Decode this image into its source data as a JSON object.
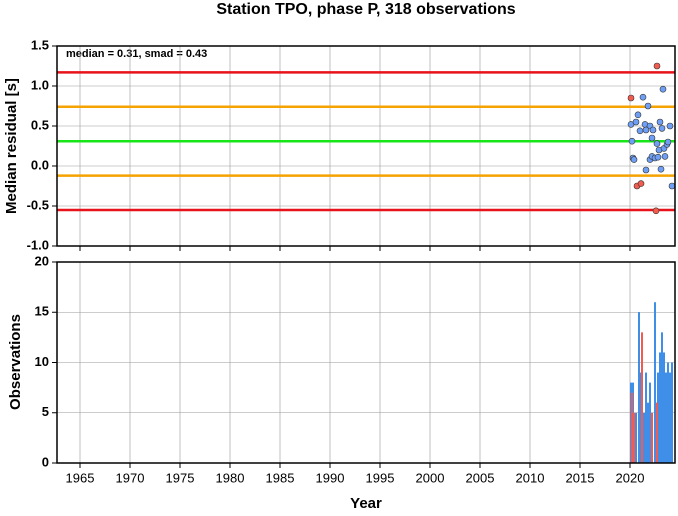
{
  "chart_data": [
    {
      "type": "scatter",
      "title": "Station TPO, phase P, 318 observations",
      "annotation": "median = 0.31, smad = 0.43",
      "ylabel": "Median residual [s]",
      "xlim": [
        1962.7,
        2024.5
      ],
      "xticks": [
        1965,
        1970,
        1975,
        1980,
        1985,
        1990,
        1995,
        2000,
        2005,
        2010,
        2015,
        2020
      ],
      "ylim": [
        -1.0,
        1.5
      ],
      "yticks": [
        {
          "value": -1.0,
          "label": "-1.0"
        },
        -0.5,
        {
          "value": 0.0,
          "label": "0.0"
        },
        0.5,
        {
          "value": 1.0,
          "label": "1.0"
        },
        1.5
      ],
      "grid": true,
      "hlines": [
        {
          "value": 1.17,
          "color": "#e8131a"
        },
        {
          "value": 0.74,
          "color": "#f5a300"
        },
        {
          "value": 0.31,
          "color": "#19e619"
        },
        {
          "value": -0.12,
          "color": "#f5a300"
        },
        {
          "value": -0.55,
          "color": "#e8131a"
        }
      ],
      "series": [
        {
          "color": "#6f9ff5",
          "x": [
            2020.1,
            2020.2,
            2020.3,
            2020.4,
            2020.6,
            2020.8,
            2021.0,
            2021.3,
            2021.5,
            2021.6,
            2021.8,
            2022.0,
            2022.0,
            2022.2,
            2022.3,
            2022.2,
            2022.5,
            2022.7,
            2022.8,
            2022.9,
            2023.0,
            2023.1,
            2023.2,
            2023.3,
            2023.4,
            2023.5,
            2023.7,
            2023.8,
            2024.0,
            2024.2,
            2021.6
          ],
          "values": [
            0.52,
            0.31,
            0.1,
            0.08,
            0.55,
            0.64,
            0.44,
            0.86,
            0.52,
            -0.05,
            0.75,
            0.5,
            0.08,
            0.35,
            0.45,
            0.12,
            0.1,
            0.28,
            0.11,
            0.2,
            0.55,
            -0.04,
            0.47,
            0.96,
            0.22,
            0.12,
            0.27,
            0.3,
            0.5,
            -0.25,
            0.45
          ]
        },
        {
          "color": "#f25c4f",
          "x": [
            2020.1,
            2022.7,
            2020.7,
            2021.1,
            2022.6
          ],
          "values": [
            0.85,
            1.25,
            -0.25,
            -0.22,
            -0.56
          ]
        }
      ]
    },
    {
      "type": "bar",
      "xlabel": "Year",
      "ylabel": "Observations",
      "xlim": [
        1962.7,
        2024.5
      ],
      "xticks": [
        1965,
        1970,
        1975,
        1980,
        1985,
        1990,
        1995,
        2000,
        2005,
        2010,
        2015,
        2020
      ],
      "ylim": [
        0,
        20
      ],
      "yticks": [
        0,
        5,
        10,
        15,
        20
      ],
      "grid": true,
      "series": [
        {
          "color": "#3f8fe8",
          "x": [
            2020.1,
            2020.3,
            2020.6,
            2020.9,
            2021.1,
            2021.4,
            2021.6,
            2021.8,
            2022.0,
            2022.2,
            2022.5,
            2022.6,
            2022.8,
            2023.0,
            2023.2,
            2023.4,
            2023.6,
            2023.8,
            2024.0,
            2024.2
          ],
          "values": [
            8,
            8,
            5,
            15,
            9,
            5,
            9,
            6,
            8,
            5,
            16,
            6,
            9,
            11,
            13,
            11,
            9,
            10,
            9,
            10
          ]
        },
        {
          "color": "#f25c4f",
          "x": [
            2020.2,
            2020.4,
            2021.2,
            2022.2,
            2022.7
          ],
          "values": [
            7,
            5,
            13,
            5,
            6
          ]
        }
      ]
    }
  ]
}
